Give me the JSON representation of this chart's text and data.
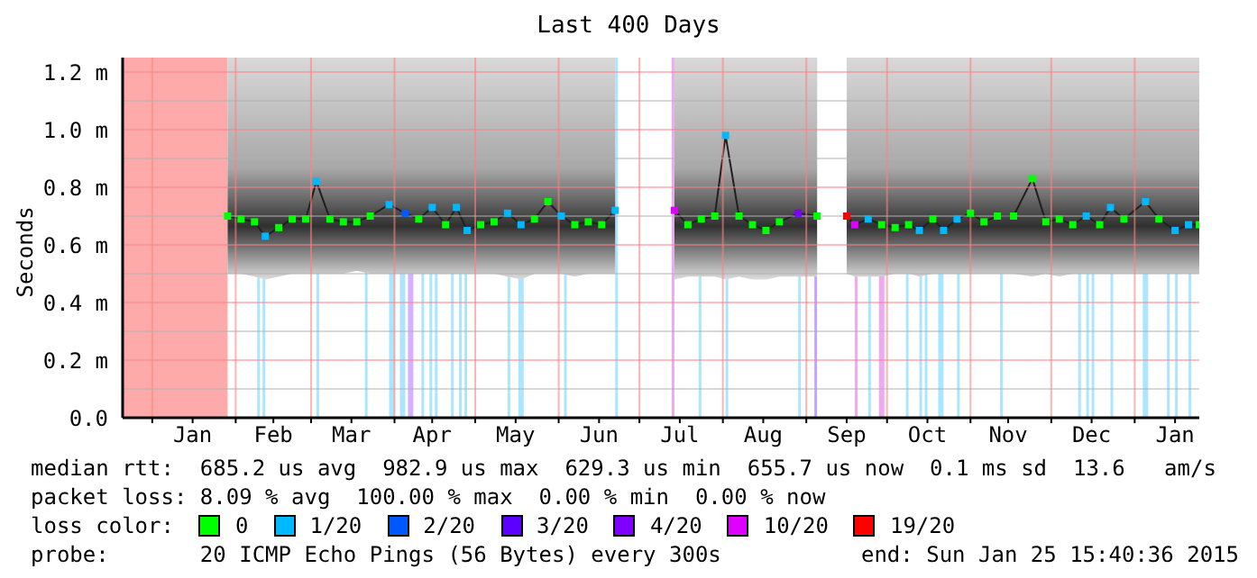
{
  "chart_data": {
    "type": "line",
    "title": "Last 400 Days",
    "ylabel": "Seconds",
    "x": [
      "2014-01-29",
      "2014-02-03",
      "2014-02-08",
      "2014-02-12",
      "2014-02-17",
      "2014-02-22",
      "2014-02-27",
      "2014-03-03",
      "2014-03-08",
      "2014-03-13",
      "2014-03-18",
      "2014-03-23",
      "2014-03-30",
      "2014-04-05",
      "2014-04-10",
      "2014-04-15",
      "2014-04-20",
      "2014-04-24",
      "2014-04-28",
      "2014-05-03",
      "2014-05-08",
      "2014-05-13",
      "2014-05-18",
      "2014-05-23",
      "2014-05-28",
      "2014-06-02",
      "2014-06-07",
      "2014-06-12",
      "2014-06-17",
      "2014-06-22",
      "2014-07-01",
      "2014-07-14",
      "2014-07-19",
      "2014-07-24",
      "2014-07-29",
      "2014-08-02",
      "2014-08-07",
      "2014-08-12",
      "2014-08-17",
      "2014-08-22",
      "2014-08-29",
      "2014-09-05",
      "2014-09-12",
      "2014-09-16",
      "2014-09-19",
      "2014-09-24",
      "2014-09-29",
      "2014-10-04",
      "2014-10-09",
      "2014-10-13",
      "2014-10-18",
      "2014-10-22",
      "2014-10-27",
      "2014-11-01",
      "2014-11-06",
      "2014-11-11",
      "2014-11-17",
      "2014-11-24",
      "2014-11-29",
      "2014-12-04",
      "2014-12-09",
      "2014-12-14",
      "2014-12-19",
      "2014-12-23",
      "2014-12-28",
      "2015-01-05",
      "2015-01-10",
      "2015-01-16",
      "2015-01-21",
      "2015-01-25"
    ],
    "series": [
      {
        "type": "line",
        "color": "#202020",
        "marker": "none",
        "values": [
          0.7,
          0.69,
          0.68,
          0.63,
          0.66,
          0.69,
          0.69,
          0.82,
          0.69,
          0.68,
          0.68,
          0.7,
          0.74,
          0.71,
          0.69,
          0.73,
          0.67,
          0.73,
          0.65,
          0.67,
          0.68,
          0.71,
          0.67,
          0.69,
          0.75,
          0.7,
          0.67,
          0.68,
          0.67,
          0.72,
          null,
          0.72,
          0.67,
          0.69,
          0.7,
          0.98,
          0.7,
          0.67,
          0.65,
          0.68,
          0.71,
          0.7,
          null,
          0.7,
          0.67,
          0.69,
          0.67,
          0.66,
          0.67,
          0.65,
          0.69,
          0.65,
          0.69,
          0.71,
          0.68,
          0.7,
          0.7,
          0.83,
          0.68,
          0.69,
          0.67,
          0.7,
          0.67,
          0.73,
          0.69,
          0.75,
          0.69,
          0.65,
          0.67,
          0.67
        ],
        "lower": [
          0.5,
          0.5,
          0.49,
          0.48,
          0.49,
          0.5,
          0.5,
          0.5,
          0.5,
          0.5,
          0.51,
          0.5,
          0.5,
          0.5,
          0.5,
          0.5,
          0.5,
          0.5,
          0.5,
          0.5,
          0.5,
          0.49,
          0.48,
          0.5,
          0.5,
          0.5,
          0.49,
          0.5,
          0.5,
          0.5,
          null,
          0.48,
          0.49,
          0.49,
          0.49,
          0.48,
          0.49,
          0.48,
          0.48,
          0.49,
          0.49,
          0.49,
          null,
          0.5,
          0.49,
          0.49,
          0.49,
          0.5,
          0.5,
          0.49,
          0.5,
          0.5,
          0.5,
          0.5,
          0.5,
          0.5,
          0.5,
          0.49,
          0.5,
          0.49,
          0.5,
          0.5,
          0.5,
          0.5,
          0.5,
          0.5,
          0.5,
          0.5,
          0.5,
          0.5
        ],
        "upper": [
          1.25,
          1.25,
          1.25,
          1.25,
          1.25,
          1.25,
          1.25,
          1.25,
          1.25,
          1.25,
          1.25,
          1.25,
          1.25,
          1.25,
          1.25,
          1.25,
          1.25,
          1.25,
          1.25,
          1.25,
          1.25,
          1.25,
          1.25,
          1.25,
          1.25,
          1.25,
          1.25,
          1.25,
          1.25,
          1.25,
          null,
          1.25,
          1.25,
          1.25,
          1.25,
          1.25,
          1.25,
          1.25,
          1.25,
          1.25,
          1.25,
          1.25,
          null,
          1.25,
          1.25,
          1.25,
          1.25,
          1.25,
          1.25,
          1.25,
          1.25,
          1.25,
          1.25,
          1.25,
          1.25,
          1.25,
          1.25,
          1.25,
          1.25,
          1.25,
          1.25,
          1.25,
          1.25,
          1.25,
          1.25,
          1.25,
          1.25,
          1.25,
          1.25,
          1.25
        ]
      },
      {
        "type": "scatter",
        "name": "0",
        "color": "#00ff00",
        "marker": "square",
        "values": [
          0.7,
          0.69,
          0.68,
          null,
          0.66,
          0.69,
          0.69,
          null,
          0.69,
          0.68,
          0.68,
          0.7,
          null,
          null,
          0.69,
          null,
          0.67,
          null,
          null,
          0.67,
          0.68,
          null,
          null,
          0.69,
          0.75,
          null,
          0.67,
          0.68,
          0.67,
          null,
          null,
          null,
          0.67,
          0.69,
          0.7,
          null,
          0.7,
          0.67,
          0.65,
          0.68,
          null,
          0.7,
          null,
          null,
          null,
          null,
          0.67,
          0.66,
          0.67,
          null,
          0.69,
          null,
          null,
          0.71,
          0.68,
          0.7,
          0.7,
          0.83,
          0.68,
          0.69,
          0.67,
          null,
          0.67,
          null,
          0.69,
          null,
          0.69,
          null,
          null,
          0.67
        ]
      },
      {
        "type": "scatter",
        "name": "1/20",
        "color": "#00b8ff",
        "marker": "square",
        "values": [
          null,
          null,
          null,
          0.63,
          null,
          null,
          null,
          0.82,
          null,
          null,
          null,
          null,
          0.74,
          null,
          null,
          0.73,
          null,
          0.73,
          0.65,
          null,
          null,
          0.71,
          0.67,
          null,
          null,
          0.7,
          null,
          null,
          null,
          0.72,
          null,
          null,
          null,
          null,
          null,
          0.98,
          null,
          null,
          null,
          null,
          null,
          null,
          null,
          null,
          null,
          0.69,
          null,
          null,
          null,
          0.65,
          null,
          0.65,
          0.69,
          null,
          null,
          null,
          null,
          null,
          null,
          null,
          null,
          0.7,
          null,
          0.73,
          null,
          0.75,
          null,
          0.65,
          0.67,
          null
        ]
      },
      {
        "type": "scatter",
        "name": "2/20",
        "color": "#0059ff",
        "marker": "square",
        "values": [
          null,
          null,
          null,
          null,
          null,
          null,
          null,
          null,
          null,
          null,
          null,
          null,
          null,
          0.71,
          null,
          null,
          null,
          null,
          null,
          null,
          null,
          null,
          null,
          null,
          null,
          null,
          null,
          null,
          null,
          null,
          null,
          null,
          null,
          null,
          null,
          null,
          null,
          null,
          null,
          null,
          null,
          null,
          null,
          null,
          null,
          null,
          null,
          null,
          null,
          null,
          null,
          null,
          null,
          null,
          null,
          null,
          null,
          null,
          null,
          null,
          null,
          null,
          null,
          null,
          null,
          null,
          null,
          null,
          null,
          null
        ]
      },
      {
        "type": "scatter",
        "name": "3/20",
        "color": "#5e00ff",
        "marker": "square",
        "values": [
          null,
          null,
          null,
          null,
          null,
          null,
          null,
          null,
          null,
          null,
          null,
          null,
          null,
          null,
          null,
          null,
          null,
          null,
          null,
          null,
          null,
          null,
          null,
          null,
          null,
          null,
          null,
          null,
          null,
          null,
          null,
          null,
          null,
          null,
          null,
          null,
          null,
          null,
          null,
          null,
          null,
          null,
          null,
          null,
          null,
          null,
          null,
          null,
          null,
          null,
          null,
          null,
          null,
          null,
          null,
          null,
          null,
          null,
          null,
          null,
          null,
          null,
          null,
          null,
          null,
          null,
          null,
          null,
          null,
          null
        ]
      },
      {
        "type": "scatter",
        "name": "4/20",
        "color": "#7e00ff",
        "marker": "square",
        "values": [
          null,
          null,
          null,
          null,
          null,
          null,
          null,
          null,
          null,
          null,
          null,
          null,
          null,
          null,
          null,
          null,
          null,
          null,
          null,
          null,
          null,
          null,
          null,
          null,
          null,
          null,
          null,
          null,
          null,
          null,
          null,
          null,
          null,
          null,
          null,
          null,
          null,
          null,
          null,
          null,
          0.71,
          null,
          null,
          null,
          null,
          null,
          null,
          null,
          null,
          null,
          null,
          null,
          null,
          null,
          null,
          null,
          null,
          null,
          null,
          null,
          null,
          null,
          null,
          null,
          null,
          null,
          null,
          null,
          null,
          null
        ]
      },
      {
        "type": "scatter",
        "name": "10/20",
        "color": "#dd00ff",
        "marker": "square",
        "values": [
          null,
          null,
          null,
          null,
          null,
          null,
          null,
          null,
          null,
          null,
          null,
          null,
          null,
          null,
          null,
          null,
          null,
          null,
          null,
          null,
          null,
          null,
          null,
          null,
          null,
          null,
          null,
          null,
          null,
          null,
          null,
          0.72,
          null,
          null,
          null,
          null,
          null,
          null,
          null,
          null,
          null,
          null,
          null,
          null,
          0.67,
          null,
          null,
          null,
          null,
          null,
          null,
          null,
          null,
          null,
          null,
          null,
          null,
          null,
          null,
          null,
          null,
          null,
          null,
          null,
          null,
          null,
          null,
          null,
          null,
          null
        ]
      },
      {
        "type": "scatter",
        "name": "19/20",
        "color": "#ff0000",
        "marker": "square",
        "values": [
          null,
          null,
          null,
          null,
          null,
          null,
          null,
          null,
          null,
          null,
          null,
          null,
          null,
          null,
          null,
          null,
          null,
          null,
          null,
          null,
          null,
          null,
          null,
          null,
          null,
          null,
          null,
          null,
          null,
          null,
          null,
          null,
          null,
          null,
          null,
          null,
          null,
          null,
          null,
          null,
          null,
          null,
          null,
          0.7,
          null,
          null,
          null,
          null,
          null,
          null,
          null,
          null,
          null,
          null,
          null,
          null,
          null,
          null,
          null,
          null,
          null,
          null,
          null,
          null,
          null,
          null,
          null,
          null,
          null,
          null
        ]
      }
    ],
    "legend": "bottom",
    "legend_title": "loss color:",
    "grid": true,
    "xlim": [
      "2013-12-21",
      "2015-01-25"
    ],
    "xticks": [
      {
        "value": "2014-01-01",
        "label": null
      },
      {
        "value": "2014-01-16",
        "label": "Jan"
      },
      {
        "value": "2014-02-01",
        "label": null
      },
      {
        "value": "2014-02-15",
        "label": "Feb"
      },
      {
        "value": "2014-03-01",
        "label": null
      },
      {
        "value": "2014-03-16",
        "label": "Mar"
      },
      {
        "value": "2014-04-01",
        "label": null
      },
      {
        "value": "2014-04-15",
        "label": "Apr"
      },
      {
        "value": "2014-05-01",
        "label": null
      },
      {
        "value": "2014-05-16",
        "label": "May"
      },
      {
        "value": "2014-06-01",
        "label": null
      },
      {
        "value": "2014-06-16",
        "label": "Jun"
      },
      {
        "value": "2014-07-01",
        "label": null
      },
      {
        "value": "2014-07-16",
        "label": "Jul"
      },
      {
        "value": "2014-08-01",
        "label": null
      },
      {
        "value": "2014-08-16",
        "label": "Aug"
      },
      {
        "value": "2014-09-01",
        "label": null
      },
      {
        "value": "2014-09-16",
        "label": "Sep"
      },
      {
        "value": "2014-10-01",
        "label": null
      },
      {
        "value": "2014-10-16",
        "label": "Oct"
      },
      {
        "value": "2014-11-01",
        "label": null
      },
      {
        "value": "2014-11-15",
        "label": "Nov"
      },
      {
        "value": "2014-12-01",
        "label": null
      },
      {
        "value": "2014-12-16",
        "label": "Dec"
      },
      {
        "value": "2015-01-01",
        "label": null
      },
      {
        "value": "2015-01-16",
        "label": "Jan"
      }
    ],
    "ylim": [
      0,
      1.25
    ],
    "yticks": [
      {
        "value": 0,
        "label": "0.0"
      },
      {
        "value": 0.1,
        "label": null
      },
      {
        "value": 0.2,
        "label": "0.2 m"
      },
      {
        "value": 0.3,
        "label": null
      },
      {
        "value": 0.4,
        "label": "0.4 m"
      },
      {
        "value": 0.5,
        "label": null
      },
      {
        "value": 0.6,
        "label": "0.6 m"
      },
      {
        "value": 0.7,
        "label": null
      },
      {
        "value": 0.8,
        "label": "0.8 m"
      },
      {
        "value": 0.9,
        "label": null
      },
      {
        "value": 1.0,
        "label": "1.0 m"
      },
      {
        "value": 1.1,
        "label": null
      },
      {
        "value": 1.2,
        "label": "1.2 m"
      }
    ],
    "bands": [
      {
        "axis": "x",
        "from": "2013-12-21",
        "to": "2014-01-29",
        "color": "#ffaaaa"
      },
      {
        "axis": "x",
        "from": "2014-02-09",
        "to": "2014-02-10",
        "color": "#aae6ff"
      },
      {
        "axis": "x",
        "from": "2014-02-11",
        "to": "2014-02-12",
        "color": "#aae6ff"
      },
      {
        "axis": "x",
        "from": "2014-03-03",
        "to": "2014-03-04",
        "color": "#aae6ff"
      },
      {
        "axis": "x",
        "from": "2014-03-21",
        "to": "2014-03-22",
        "color": "#aae6ff"
      },
      {
        "axis": "x",
        "from": "2014-03-30",
        "to": "2014-04-01",
        "color": "#aae6ff"
      },
      {
        "axis": "x",
        "from": "2014-04-03",
        "to": "2014-04-05",
        "color": "#aae6ff"
      },
      {
        "axis": "x",
        "from": "2014-04-06",
        "to": "2014-04-08",
        "color": "#d4b0ff"
      },
      {
        "axis": "x",
        "from": "2014-04-11",
        "to": "2014-04-12",
        "color": "#aae6ff"
      },
      {
        "axis": "x",
        "from": "2014-04-14",
        "to": "2014-04-15",
        "color": "#aae6ff"
      },
      {
        "axis": "x",
        "from": "2014-04-16",
        "to": "2014-04-17",
        "color": "#aae6ff"
      },
      {
        "axis": "x",
        "from": "2014-04-22",
        "to": "2014-04-23",
        "color": "#aae6ff"
      },
      {
        "axis": "x",
        "from": "2014-04-25",
        "to": "2014-04-26",
        "color": "#aae6ff"
      },
      {
        "axis": "x",
        "from": "2014-04-27",
        "to": "2014-04-28",
        "color": "#aae6ff"
      },
      {
        "axis": "x",
        "from": "2014-05-13",
        "to": "2014-05-14",
        "color": "#aae6ff"
      },
      {
        "axis": "x",
        "from": "2014-05-17",
        "to": "2014-05-19",
        "color": "#aae6ff"
      },
      {
        "axis": "x",
        "from": "2014-06-03",
        "to": "2014-06-04",
        "color": "#aae6ff"
      },
      {
        "axis": "x",
        "from": "2014-06-22",
        "to": "2014-06-23",
        "color": "#aae6ff"
      },
      {
        "axis": "x",
        "from": "2014-07-13",
        "to": "2014-07-14",
        "color": "#f0a8f0"
      },
      {
        "axis": "x",
        "from": "2014-07-23",
        "to": "2014-07-24",
        "color": "#aae6ff"
      },
      {
        "axis": "x",
        "from": "2014-08-02",
        "to": "2014-08-03",
        "color": "#aae6ff"
      },
      {
        "axis": "x",
        "from": "2014-08-29",
        "to": "2014-08-30",
        "color": "#aae6ff"
      },
      {
        "axis": "x",
        "from": "2014-09-04",
        "to": "2014-09-05",
        "color": "#c8a0ff"
      },
      {
        "axis": "x",
        "from": "2014-09-19",
        "to": "2014-09-20",
        "color": "#f0a8f0"
      },
      {
        "axis": "x",
        "from": "2014-09-24",
        "to": "2014-09-25",
        "color": "#aae6ff"
      },
      {
        "axis": "x",
        "from": "2014-09-28",
        "to": "2014-09-30",
        "color": "#f0a8f0"
      },
      {
        "axis": "x",
        "from": "2014-10-08",
        "to": "2014-10-09",
        "color": "#aae6ff"
      },
      {
        "axis": "x",
        "from": "2014-10-13",
        "to": "2014-10-14",
        "color": "#aae6ff"
      },
      {
        "axis": "x",
        "from": "2014-10-15",
        "to": "2014-10-16",
        "color": "#aae6ff"
      },
      {
        "axis": "x",
        "from": "2014-10-20",
        "to": "2014-10-22",
        "color": "#aae6ff"
      },
      {
        "axis": "x",
        "from": "2014-10-27",
        "to": "2014-10-28",
        "color": "#aae6ff"
      },
      {
        "axis": "x",
        "from": "2014-11-12",
        "to": "2014-11-13",
        "color": "#aae6ff"
      },
      {
        "axis": "x",
        "from": "2014-12-11",
        "to": "2014-12-12",
        "color": "#aae6ff"
      },
      {
        "axis": "x",
        "from": "2014-12-14",
        "to": "2014-12-15",
        "color": "#aae6ff"
      },
      {
        "axis": "x",
        "from": "2014-12-16",
        "to": "2014-12-17",
        "color": "#aae6ff"
      },
      {
        "axis": "x",
        "from": "2014-12-23",
        "to": "2014-12-24",
        "color": "#aae6ff"
      },
      {
        "axis": "x",
        "from": "2015-01-04",
        "to": "2015-01-06",
        "color": "#aae6ff"
      },
      {
        "axis": "x",
        "from": "2015-01-13",
        "to": "2015-01-14",
        "color": "#aae6ff"
      },
      {
        "axis": "x",
        "from": "2015-01-16",
        "to": "2015-01-17",
        "color": "#aae6ff"
      },
      {
        "axis": "x",
        "from": "2015-01-21",
        "to": "2015-01-22",
        "color": "#aae6ff"
      }
    ],
    "annotations": [
      "median rtt:  685.2 us avg  982.9 us max  629.3 us min  655.7 us now  0.1 ms sd  13.6   am/s",
      "packet loss: 8.09 % avg  100.00 % max  0.00 % min  0.00 % now",
      "probe:       20 ICMP Echo Pings (56 Bytes) every 300s",
      "end: Sun Jan 25 15:40:36 2015"
    ]
  }
}
